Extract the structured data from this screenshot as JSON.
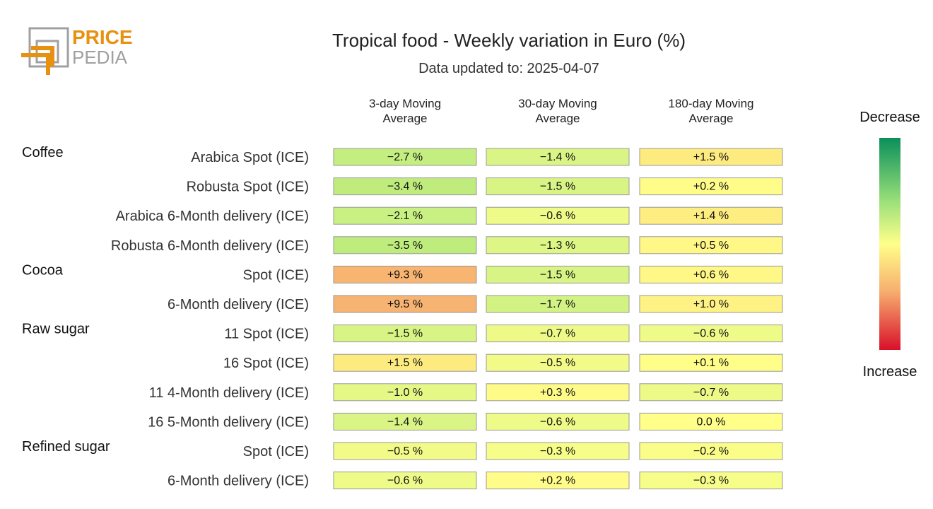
{
  "logo": {
    "line1": "PRICE",
    "line2": "PEDIA",
    "accent": "#e8900f",
    "grey": "#999999"
  },
  "header": {
    "title": "Tropical food - Weekly variation in Euro (%)",
    "subtitle": "Data updated to: 2025-04-07"
  },
  "chart_data": {
    "type": "heatmap",
    "title": "Tropical food - Weekly variation in Euro (%)",
    "columns": [
      [
        "3-day Moving",
        "Average"
      ],
      [
        "30-day Moving",
        "Average"
      ],
      [
        "180-day Moving",
        "Average"
      ]
    ],
    "groups": [
      {
        "name": "Coffee",
        "rows": [
          {
            "label": "Arabica Spot (ICE)",
            "values": [
              -2.7,
              -1.4,
              1.5
            ],
            "texts": [
              "−2.7 %",
              "−1.4 %",
              "+1.5 %"
            ]
          },
          {
            "label": "Robusta Spot (ICE)",
            "values": [
              -3.4,
              -1.5,
              0.2
            ],
            "texts": [
              "−3.4 %",
              "−1.5 %",
              "+0.2 %"
            ]
          },
          {
            "label": "Arabica 6-Month delivery (ICE)",
            "values": [
              -2.1,
              -0.6,
              1.4
            ],
            "texts": [
              "−2.1 %",
              "−0.6 %",
              "+1.4 %"
            ]
          },
          {
            "label": "Robusta 6-Month delivery (ICE)",
            "values": [
              -3.5,
              -1.3,
              0.5
            ],
            "texts": [
              "−3.5 %",
              "−1.3 %",
              "+0.5 %"
            ]
          }
        ]
      },
      {
        "name": "Cocoa",
        "rows": [
          {
            "label": "Spot (ICE)",
            "values": [
              9.3,
              -1.5,
              0.6
            ],
            "texts": [
              "+9.3 %",
              "−1.5 %",
              "+0.6 %"
            ]
          },
          {
            "label": "6-Month delivery (ICE)",
            "values": [
              9.5,
              -1.7,
              1.0
            ],
            "texts": [
              "+9.5 %",
              "−1.7 %",
              "+1.0 %"
            ]
          }
        ]
      },
      {
        "name": "Raw sugar",
        "rows": [
          {
            "label": "11 Spot (ICE)",
            "values": [
              -1.5,
              -0.7,
              -0.6
            ],
            "texts": [
              "−1.5 %",
              "−0.7 %",
              "−0.6 %"
            ]
          },
          {
            "label": "16 Spot (ICE)",
            "values": [
              1.5,
              -0.5,
              0.1
            ],
            "texts": [
              "+1.5 %",
              "−0.5 %",
              "+0.1 %"
            ]
          },
          {
            "label": "11 4-Month delivery (ICE)",
            "values": [
              -1.0,
              0.3,
              -0.7
            ],
            "texts": [
              "−1.0 %",
              "+0.3 %",
              "−0.7 %"
            ]
          },
          {
            "label": "16 5-Month delivery (ICE)",
            "values": [
              -1.4,
              -0.6,
              0.0
            ],
            "texts": [
              "−1.4 %",
              "−0.6 %",
              "0.0 %"
            ]
          }
        ]
      },
      {
        "name": "Refined sugar",
        "rows": [
          {
            "label": "Spot (ICE)",
            "values": [
              -0.5,
              -0.3,
              -0.2
            ],
            "texts": [
              "−0.5 %",
              "−0.3 %",
              "−0.2 %"
            ]
          },
          {
            "label": "6-Month delivery (ICE)",
            "values": [
              -0.6,
              0.2,
              -0.3
            ],
            "texts": [
              "−0.6 %",
              "+0.2 %",
              "−0.3 %"
            ]
          }
        ]
      }
    ],
    "legend": {
      "top_label": "Decrease",
      "bottom_label": "Increase",
      "placement": "right",
      "colors_top_to_bottom": [
        "#0a8f5a",
        "#9be07a",
        "#ffff8a",
        "#f7b070",
        "#d8102a"
      ]
    },
    "cell_border": "#9a9a9a"
  }
}
